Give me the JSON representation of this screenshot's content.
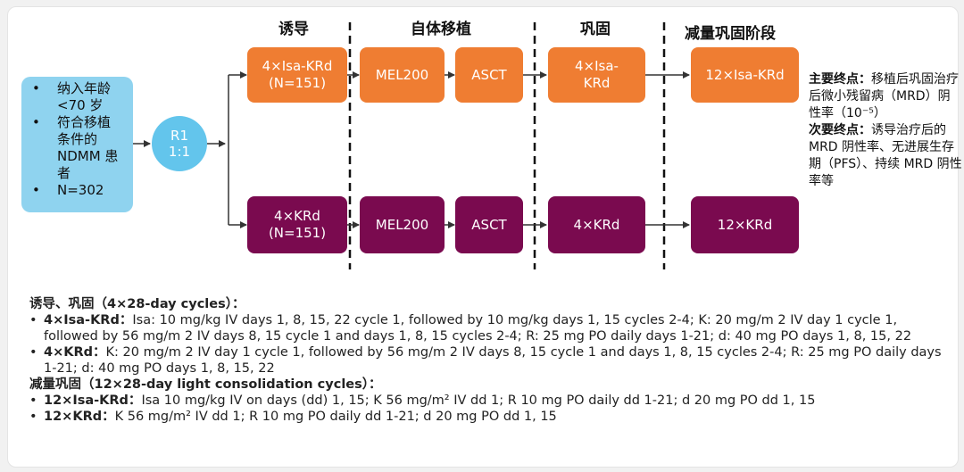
{
  "phases": {
    "induction": "诱导",
    "asct": "自体移植",
    "consolidation": "巩固",
    "light": "减量巩固阶段"
  },
  "eligibility": {
    "items": [
      "纳入年龄<70 岁",
      "符合移植条件的 NDMM 患者",
      "N=302"
    ]
  },
  "randomization": {
    "line1": "R1",
    "line2": "1:1"
  },
  "arm_a": {
    "induction": "4×Isa-KRd",
    "induction_n": "(N=151)",
    "mel": "MEL200",
    "asct": "ASCT",
    "consolidation_1": "4×Isa-",
    "consolidation_2": "KRd",
    "light": "12×Isa-KRd"
  },
  "arm_b": {
    "induction": "4×KRd",
    "induction_n": "(N=151)",
    "mel": "MEL200",
    "asct": "ASCT",
    "consolidation": "4×KRd",
    "light": "12×KRd"
  },
  "endpoints": {
    "primary_key": "主要终点：",
    "primary_text": "移植后巩固治疗后微小残留病（MRD）阴性率（10⁻⁵）",
    "secondary_key": "次要终点：",
    "secondary_text": "诱导治疗后的 MRD 阴性率、无进展生存期（PFS）、持续 MRD 阴性率等"
  },
  "notes": {
    "heading1": "诱导、巩固（4×28-day cycles）：",
    "r1_label": "4×Isa-KRd：",
    "r1_text": "Isa: 10 mg/kg IV days 1, 8, 15, 22 cycle 1, followed by 10 mg/kg days 1, 15 cycles 2-4; K: 20 mg/m 2 IV day 1 cycle 1, followed by 56 mg/m 2 IV days 8, 15 cycle 1 and days 1, 8, 15 cycles 2-4; R: 25 mg PO daily days 1-21; d: 40 mg PO days 1, 8, 15, 22",
    "r2_label": "4×KRd：",
    "r2_text": "K: 20 mg/m 2 IV day 1 cycle 1, followed by 56 mg/m 2 IV days 8, 15 cycle 1 and days 1, 8, 15 cycles 2-4; R: 25 mg PO daily days 1-21; d: 40 mg PO days 1, 8, 15, 22",
    "heading2": "减量巩固（12×28-day light consolidation cycles）：",
    "r3_label": "12×Isa-KRd：",
    "r3_text": "Isa 10 mg/kg IV on days (dd) 1, 15; K 56 mg/m² IV dd 1; R 10 mg PO daily dd 1-21; d 20 mg PO dd 1, 15",
    "r4_label": "12×KRd：",
    "r4_text": "K 56 mg/m² IV dd 1; R 10 mg PO daily dd 1-21; d 20 mg PO dd 1, 15"
  },
  "colors": {
    "orange": "#ef7d32",
    "purple": "#7a0a4f",
    "eligibility": "#8fd3ef",
    "randomization": "#63c5ec"
  }
}
